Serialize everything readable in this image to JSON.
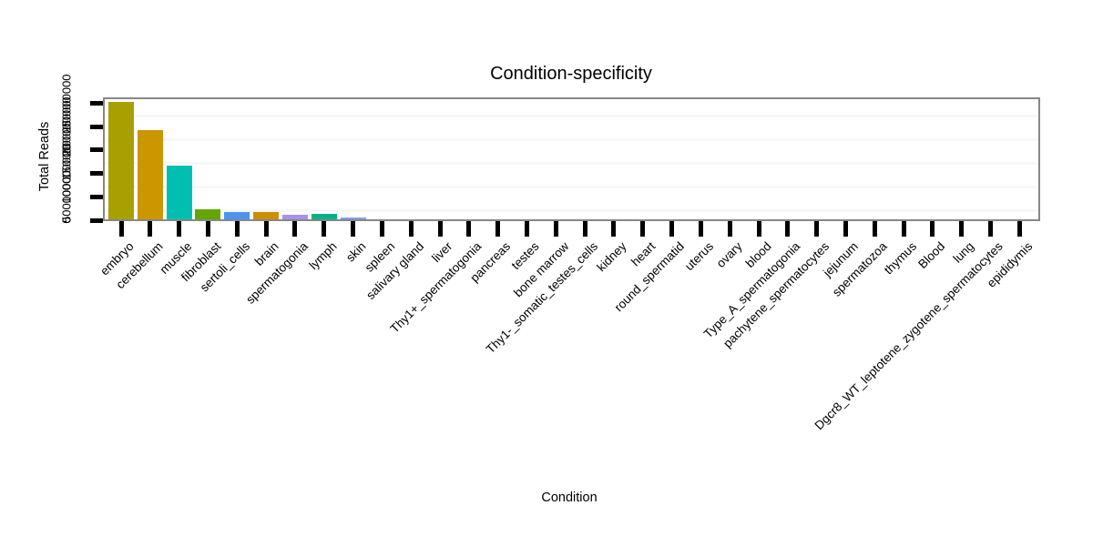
{
  "figure": {
    "background": "#ffffff",
    "box_border_color": "#878787",
    "gridline_color": "#f7f7f7",
    "tick_color": "#000000"
  },
  "chart_data": {
    "type": "bar",
    "title": "Condition-specificity",
    "xlabel": "Condition",
    "ylabel": "Total Reads",
    "ylim": [
      0,
      260000000
    ],
    "yticks": [
      0,
      50000000,
      100000000,
      150000000,
      200000000,
      250000000
    ],
    "ytick_labels": [
      "0",
      "50000000",
      "100000000",
      "150000000",
      "200000000",
      "250000000"
    ],
    "grid": "faint-horizontal-stripes",
    "legend_position": "none",
    "categories": [
      "embryo",
      "cerebellum",
      "muscle",
      "fibroblast",
      "sertoli_cells",
      "brain",
      "spermatogonia",
      "lymph",
      "skin",
      "spleen",
      "salivary gland",
      "liver",
      "Thy1+_spermatogonia",
      "pancreas",
      "testes",
      "bone marrow",
      "Thy1-_somatic_testes_cells",
      "kidney",
      "heart",
      "round_spermatid",
      "uterus",
      "ovary",
      "blood",
      "Type_A_spermatogonia",
      "pachytene_spermatocytes",
      "jejunum",
      "spermatozoa",
      "thymus",
      "Blood",
      "lung",
      "Dgcr8_WT_leptotene_zygotene_spermatocytes",
      "epididymis"
    ],
    "values": [
      250000000,
      190000000,
      115000000,
      21000000,
      16000000,
      15000000,
      9000000,
      11000000,
      4500000,
      2000000,
      1800000,
      1600000,
      1400000,
      1300000,
      1200000,
      1100000,
      1000000,
      900000,
      850000,
      800000,
      750000,
      700000,
      650000,
      600000,
      550000,
      500000,
      450000,
      400000,
      350000,
      300000,
      250000,
      200000
    ],
    "bar_colors": [
      "#a8a000",
      "#cc9600",
      "#00bfb0",
      "#63a602",
      "#4d94ee",
      "#cc8f00",
      "#a990ea",
      "#00b386",
      "#8a9af0"
    ]
  }
}
